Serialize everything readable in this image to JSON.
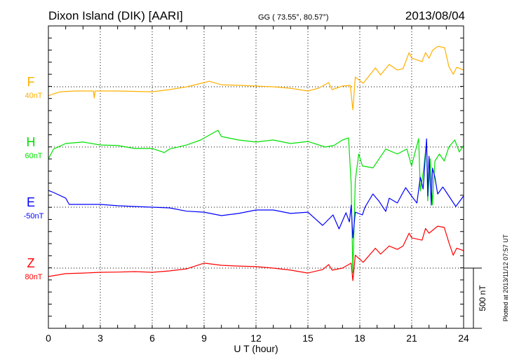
{
  "header": {
    "station": "Dixon Island (DIK)  [AARI]",
    "coords": "GG ( 73.55°,  80.57°)",
    "date": "2013/08/04"
  },
  "plotted_stamp": "Plotted at 2013/11/12 07:57 UT",
  "chart_data": {
    "type": "line",
    "title": "Dixon Island (DIK)  [AARI]",
    "xlabel": "U T (hour)",
    "xlim": [
      0,
      24
    ],
    "xticks": [
      "0",
      "3",
      "6",
      "9",
      "12",
      "15",
      "18",
      "21",
      "24"
    ],
    "scale_bar_label": "500 nT",
    "scale_bar_nT": 500,
    "grid": "dotted at every 3 h and at each component baseline",
    "units": "nT deviation from baseline",
    "series": [
      {
        "name": "F",
        "baseline_label": "40nT",
        "color": "#ffb000",
        "points": [
          [
            0,
            -75
          ],
          [
            0.3,
            -58
          ],
          [
            0.7,
            -41
          ],
          [
            1.5,
            -35
          ],
          [
            2.6,
            -35
          ],
          [
            2.65,
            -93
          ],
          [
            2.7,
            -35
          ],
          [
            4,
            -35
          ],
          [
            6,
            -41
          ],
          [
            7,
            -23
          ],
          [
            8,
            0
          ],
          [
            9,
            35
          ],
          [
            9.3,
            46
          ],
          [
            10,
            17
          ],
          [
            11,
            12
          ],
          [
            12,
            6
          ],
          [
            13,
            0
          ],
          [
            14,
            -12
          ],
          [
            15,
            -35
          ],
          [
            15.6,
            -12
          ],
          [
            16.2,
            35
          ],
          [
            16.4,
            -23
          ],
          [
            17,
            6
          ],
          [
            17.45,
            12
          ],
          [
            17.6,
            -191
          ],
          [
            17.74,
            81
          ],
          [
            18.2,
            29
          ],
          [
            18.9,
            157
          ],
          [
            19.2,
            99
          ],
          [
            19.7,
            186
          ],
          [
            20.17,
            139
          ],
          [
            20.5,
            151
          ],
          [
            20.85,
            284
          ],
          [
            21,
            238
          ],
          [
            21.6,
            209
          ],
          [
            21.8,
            284
          ],
          [
            22,
            238
          ],
          [
            22.2,
            302
          ],
          [
            22.5,
            336
          ],
          [
            22.9,
            325
          ],
          [
            23.15,
            168
          ],
          [
            23.4,
            104
          ],
          [
            23.6,
            162
          ],
          [
            24,
            139
          ]
        ]
      },
      {
        "name": "H",
        "baseline_label": "60nT",
        "color": "#00e000",
        "points": [
          [
            0,
            -99
          ],
          [
            0.3,
            -17
          ],
          [
            1,
            29
          ],
          [
            2,
            41
          ],
          [
            3,
            17
          ],
          [
            4,
            12
          ],
          [
            5,
            -12
          ],
          [
            6,
            -12
          ],
          [
            6.7,
            -46
          ],
          [
            7,
            -17
          ],
          [
            8,
            17
          ],
          [
            8.8,
            58
          ],
          [
            9.8,
            139
          ],
          [
            10,
            87
          ],
          [
            11,
            58
          ],
          [
            12,
            41
          ],
          [
            13,
            58
          ],
          [
            14,
            29
          ],
          [
            15,
            46
          ],
          [
            16,
            0
          ],
          [
            16.5,
            12
          ],
          [
            17,
            58
          ],
          [
            17.35,
            75
          ],
          [
            17.5,
            -307
          ],
          [
            17.6,
            -1044
          ],
          [
            17.74,
            -273
          ],
          [
            17.94,
            -58
          ],
          [
            18.15,
            -157
          ],
          [
            18.76,
            -174
          ],
          [
            19.5,
            -17
          ],
          [
            20.17,
            -58
          ],
          [
            20.72,
            -17
          ],
          [
            20.99,
            -157
          ],
          [
            21.4,
            70
          ],
          [
            21.5,
            -365
          ],
          [
            21.66,
            -215
          ],
          [
            21.86,
            41
          ],
          [
            21.93,
            -447
          ],
          [
            22.07,
            -99
          ],
          [
            22.2,
            -481
          ],
          [
            22.34,
            -116
          ],
          [
            22.6,
            -58
          ],
          [
            22.88,
            -116
          ],
          [
            23.15,
            0
          ],
          [
            23.49,
            58
          ],
          [
            23.75,
            -41
          ],
          [
            24,
            12
          ]
        ]
      },
      {
        "name": "E",
        "baseline_label": "-50nT",
        "color": "#0000ff",
        "points": [
          [
            0,
            139
          ],
          [
            0.3,
            122
          ],
          [
            1,
            75
          ],
          [
            1.2,
            23
          ],
          [
            2,
            23
          ],
          [
            3,
            23
          ],
          [
            4,
            12
          ],
          [
            5,
            6
          ],
          [
            6,
            0
          ],
          [
            7,
            -6
          ],
          [
            8,
            -33
          ],
          [
            9,
            -41
          ],
          [
            10,
            -70
          ],
          [
            11,
            -52
          ],
          [
            12,
            -23
          ],
          [
            13,
            -23
          ],
          [
            14,
            -52
          ],
          [
            15,
            -41
          ],
          [
            15.85,
            -151
          ],
          [
            16.45,
            -64
          ],
          [
            16.8,
            -180
          ],
          [
            17.2,
            -46
          ],
          [
            17.4,
            -122
          ],
          [
            17.5,
            17
          ],
          [
            17.6,
            -255
          ],
          [
            17.74,
            -41
          ],
          [
            18.15,
            -64
          ],
          [
            18.3,
            0
          ],
          [
            18.76,
            110
          ],
          [
            19.1,
            52
          ],
          [
            19.5,
            -35
          ],
          [
            19.7,
            75
          ],
          [
            20.17,
            35
          ],
          [
            20.45,
            110
          ],
          [
            20.65,
            162
          ],
          [
            20.99,
            93
          ],
          [
            21.3,
            35
          ],
          [
            21.5,
            249
          ],
          [
            21.66,
            151
          ],
          [
            21.86,
            568
          ],
          [
            21.93,
            93
          ],
          [
            22.0,
            423
          ],
          [
            22.13,
            17
          ],
          [
            22.2,
            325
          ],
          [
            22.34,
            249
          ],
          [
            22.5,
            110
          ],
          [
            22.8,
            168
          ],
          [
            23.15,
            93
          ],
          [
            23.55,
            6
          ],
          [
            24,
            93
          ]
        ]
      },
      {
        "name": "Z",
        "baseline_label": "80nT",
        "color": "#ff0000",
        "points": [
          [
            0,
            -70
          ],
          [
            0.5,
            -58
          ],
          [
            1,
            -46
          ],
          [
            2,
            -41
          ],
          [
            3,
            -35
          ],
          [
            4,
            -33
          ],
          [
            5,
            -29
          ],
          [
            6,
            -35
          ],
          [
            7,
            -23
          ],
          [
            8,
            -6
          ],
          [
            9,
            41
          ],
          [
            10,
            23
          ],
          [
            11,
            17
          ],
          [
            12,
            12
          ],
          [
            13,
            0
          ],
          [
            14,
            -17
          ],
          [
            15,
            -41
          ],
          [
            15.85,
            -12
          ],
          [
            16.2,
            29
          ],
          [
            16.4,
            -17
          ],
          [
            17,
            0
          ],
          [
            17.5,
            41
          ],
          [
            17.6,
            -104
          ],
          [
            17.74,
            107
          ],
          [
            18.2,
            48
          ],
          [
            18.9,
            165
          ],
          [
            19.2,
            116
          ],
          [
            19.7,
            184
          ],
          [
            20.17,
            155
          ],
          [
            20.5,
            184
          ],
          [
            20.85,
            290
          ],
          [
            21,
            251
          ],
          [
            21.6,
            232
          ],
          [
            21.8,
            329
          ],
          [
            22,
            290
          ],
          [
            22.5,
            348
          ],
          [
            22.88,
            338
          ],
          [
            23.15,
            213
          ],
          [
            23.4,
            107
          ],
          [
            23.6,
            165
          ],
          [
            24,
            145
          ]
        ]
      }
    ]
  }
}
